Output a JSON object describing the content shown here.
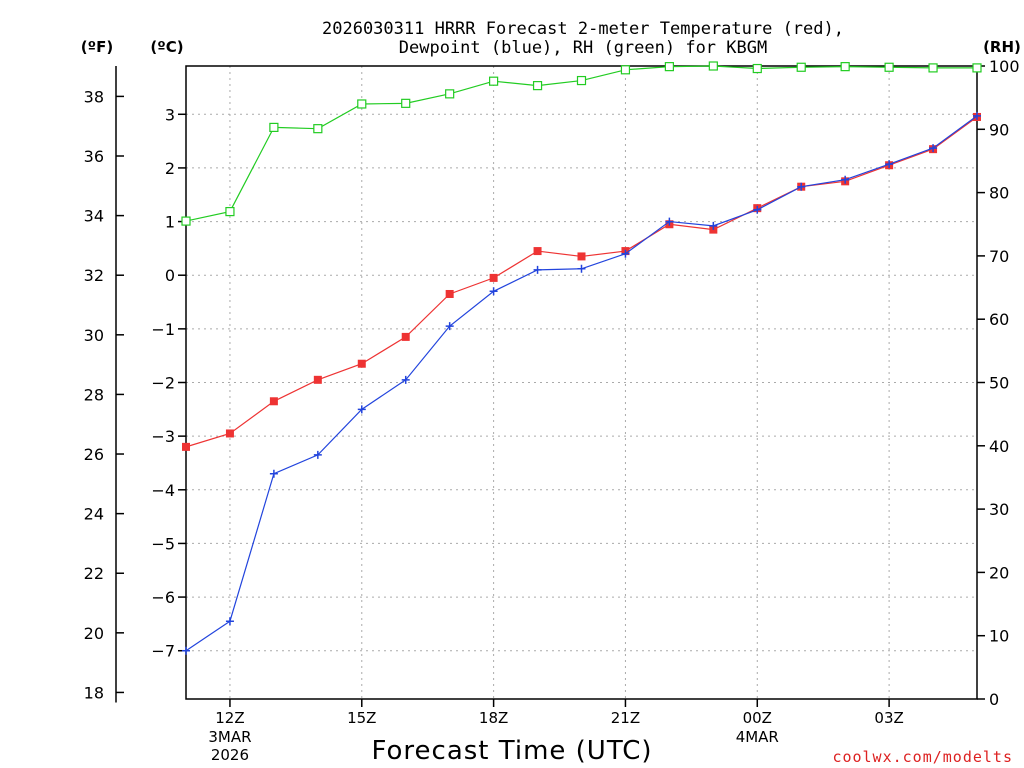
{
  "chart_data": {
    "type": "line",
    "title_line1": "2026030311 HRRR Forecast 2-meter Temperature (red),",
    "title_line2": "Dewpoint (blue), RH (green) for KBGM",
    "xlabel": "Forecast Time (UTC)",
    "credit": "coolwx.com/modelts",
    "unit_labels": {
      "fahrenheit": "(ºF)",
      "celsius": "(ºC)",
      "rh": "(RH)"
    },
    "x_ticks": [
      {
        "x": 12,
        "label": "12Z",
        "sub1": "3MAR",
        "sub2": "2026"
      },
      {
        "x": 15,
        "label": "15Z",
        "sub1": "",
        "sub2": ""
      },
      {
        "x": 18,
        "label": "18Z",
        "sub1": "",
        "sub2": ""
      },
      {
        "x": 21,
        "label": "21Z",
        "sub1": "",
        "sub2": ""
      },
      {
        "x": 24,
        "label": "00Z",
        "sub1": "4MAR",
        "sub2": ""
      },
      {
        "x": 27,
        "label": "03Z",
        "sub1": "",
        "sub2": ""
      }
    ],
    "xlim": [
      11,
      29
    ],
    "celsius_ticks": [
      "-7",
      "-6",
      "-5",
      "-4",
      "-3",
      "-2",
      "-1",
      "0",
      "1",
      "2",
      "3"
    ],
    "celsius_lim": [
      -7.9,
      3.9
    ],
    "fahrenheit_ticks": [
      "18",
      "20",
      "22",
      "24",
      "26",
      "28",
      "30",
      "32",
      "34",
      "36",
      "38"
    ],
    "rh_ticks": [
      "0",
      "10",
      "20",
      "30",
      "40",
      "50",
      "60",
      "70",
      "80",
      "90",
      "100"
    ],
    "rh_lim": [
      0,
      100
    ],
    "colors": {
      "temperature": "#ee3333",
      "dewpoint": "#2244dd",
      "rh": "#22cc22",
      "grid": "#aaaaaa",
      "axis": "#000000",
      "credit": "#dd2222"
    },
    "series": [
      {
        "name": "Temperature",
        "unit": "C",
        "marker": "square-filled",
        "x": [
          11,
          12,
          13,
          14,
          15,
          16,
          17,
          18,
          19,
          20,
          21,
          22,
          23,
          24,
          25,
          26,
          27,
          28,
          29
        ],
        "values": [
          -3.2,
          -2.95,
          -2.35,
          -1.95,
          -1.65,
          -1.15,
          -0.35,
          -0.05,
          0.45,
          0.35,
          0.45,
          0.95,
          0.85,
          1.25,
          1.65,
          1.75,
          2.05,
          2.35,
          2.95
        ]
      },
      {
        "name": "Dewpoint",
        "unit": "C",
        "marker": "plus",
        "x": [
          11,
          12,
          13,
          14,
          15,
          16,
          17,
          18,
          19,
          20,
          21,
          22,
          23,
          24,
          25,
          26,
          27,
          28,
          29
        ],
        "values": [
          -7.0,
          -6.45,
          -3.7,
          -3.35,
          -2.5,
          -1.95,
          -0.95,
          -0.3,
          0.1,
          0.12,
          0.4,
          1.0,
          0.92,
          1.22,
          1.65,
          1.78,
          2.07,
          2.37,
          2.97
        ]
      },
      {
        "name": "RH",
        "unit": "%",
        "marker": "square-open",
        "x": [
          11,
          12,
          13,
          14,
          15,
          16,
          17,
          18,
          19,
          20,
          21,
          22,
          23,
          24,
          25,
          26,
          27,
          28,
          29
        ],
        "values": [
          75.5,
          77,
          90.3,
          90.1,
          94,
          94.1,
          95.6,
          97.6,
          96.9,
          97.7,
          99.4,
          99.9,
          100,
          99.6,
          99.8,
          99.9,
          99.8,
          99.7,
          99.7
        ]
      }
    ]
  }
}
